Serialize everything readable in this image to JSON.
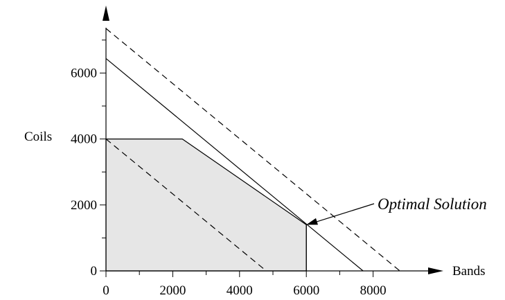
{
  "chart_data": {
    "type": "line",
    "xlabel": "Bands",
    "ylabel": "Coils",
    "xlim": [
      0,
      9500
    ],
    "ylim": [
      0,
      7500
    ],
    "x_ticks": [
      0,
      2000,
      4000,
      6000,
      8000
    ],
    "x_minor_ticks": [
      1000,
      3000,
      5000,
      7000
    ],
    "y_ticks": [
      0,
      2000,
      4000,
      6000
    ],
    "y_minor_ticks": [
      1000,
      3000,
      5000,
      7000
    ],
    "x_tick_labels": [
      "0",
      "2000",
      "4000",
      "6000",
      "8000"
    ],
    "y_tick_labels": [
      "0",
      "2000",
      "4000",
      "6000"
    ],
    "feasible_region": [
      [
        0,
        0
      ],
      [
        0,
        4000
      ],
      [
        2286,
        4000
      ],
      [
        6000,
        1400
      ],
      [
        6000,
        0
      ]
    ],
    "series": [
      {
        "style": "solid",
        "x": [
          0,
          7700
        ],
        "y": [
          6440,
          0
        ]
      },
      {
        "style": "solid",
        "x": [
          6000,
          6000
        ],
        "y": [
          0,
          1400
        ]
      },
      {
        "style": "dashed",
        "x": [
          0,
          8800
        ],
        "y": [
          7350,
          0
        ]
      },
      {
        "style": "dashed",
        "x": [
          0,
          4800
        ],
        "y": [
          4000,
          0
        ]
      }
    ],
    "annotation": {
      "text": "Optimal Solution",
      "point": [
        6000,
        1400
      ]
    },
    "colors": {
      "region_fill": "#e6e6e6",
      "line": "#000000"
    },
    "grid": false
  }
}
